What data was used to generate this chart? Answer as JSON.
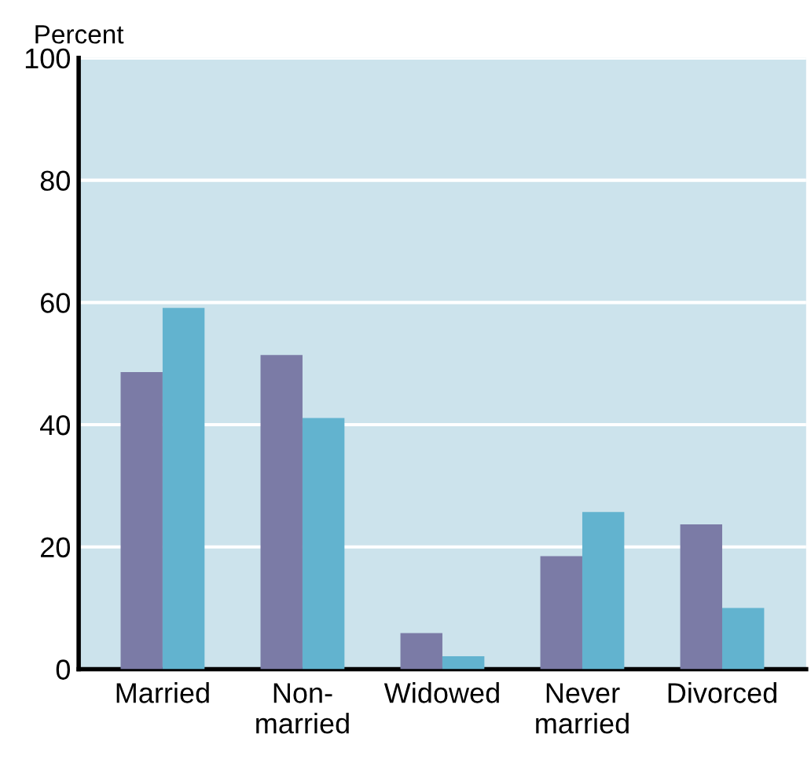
{
  "chart_data": {
    "type": "bar",
    "ylabel": "Percent",
    "categories": [
      "Married",
      "Non-\nmarried",
      "Widowed",
      "Never\nmarried",
      "Divorced"
    ],
    "series": [
      {
        "color": "#7b7ba6",
        "values": [
          48.6,
          51.4,
          5.9,
          18.5,
          23.7
        ]
      },
      {
        "color": "#62b3cf",
        "values": [
          59.1,
          41.1,
          2.1,
          25.7,
          10.0
        ]
      }
    ],
    "ylim": [
      0,
      100
    ],
    "yticks": [
      0,
      20,
      40,
      60,
      80,
      100
    ],
    "grid": "y"
  }
}
